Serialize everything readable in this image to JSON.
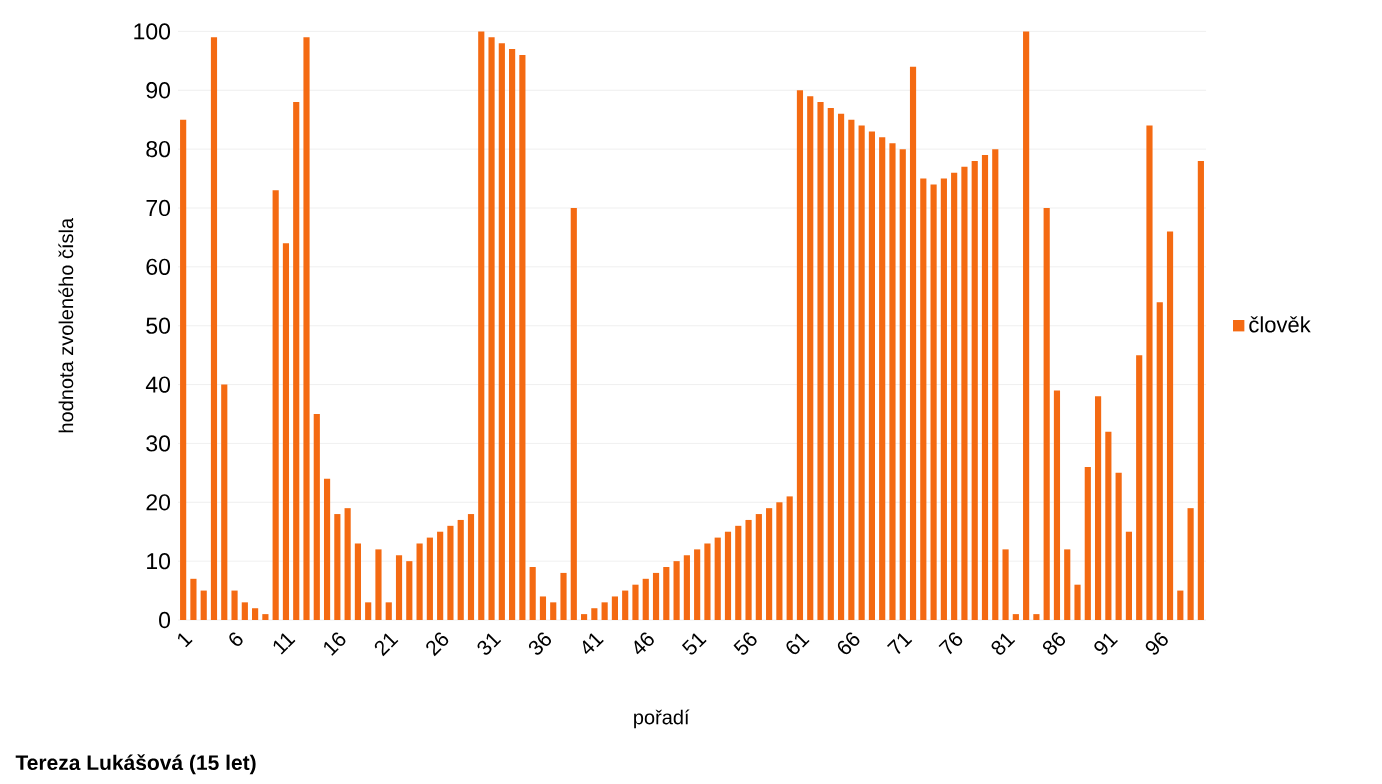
{
  "chart_data": {
    "type": "bar",
    "xlabel": "pořadí",
    "ylabel": "hodnota zvoleného čísla",
    "categories": [
      "1",
      null,
      null,
      null,
      null,
      "6",
      null,
      null,
      null,
      null,
      "11",
      null,
      null,
      null,
      null,
      "16",
      null,
      null,
      null,
      null,
      "21",
      null,
      null,
      null,
      null,
      "26",
      null,
      null,
      null,
      null,
      "31",
      null,
      null,
      null,
      null,
      "36",
      null,
      null,
      null,
      null,
      "41",
      null,
      null,
      null,
      null,
      "46",
      null,
      null,
      null,
      null,
      "51",
      null,
      null,
      null,
      null,
      "56",
      null,
      null,
      null,
      null,
      "61",
      null,
      null,
      null,
      null,
      "66",
      null,
      null,
      null,
      null,
      "71",
      null,
      null,
      null,
      null,
      "76",
      null,
      null,
      null,
      null,
      "81",
      null,
      null,
      null,
      null,
      "86",
      null,
      null,
      null,
      null,
      "91",
      null,
      null,
      null,
      null,
      "96",
      null,
      null,
      null,
      null
    ],
    "series": [
      {
        "name": "člověk",
        "color": "#f46a12",
        "values": [
          85,
          7,
          5,
          99,
          40,
          5,
          3,
          2,
          1,
          73,
          64,
          88,
          99,
          35,
          24,
          18,
          19,
          13,
          3,
          12,
          3,
          11,
          10,
          13,
          14,
          15,
          16,
          17,
          18,
          100,
          99,
          98,
          97,
          96,
          9,
          4,
          3,
          8,
          70,
          1,
          2,
          3,
          4,
          5,
          6,
          7,
          8,
          9,
          10,
          11,
          12,
          13,
          14,
          15,
          16,
          17,
          18,
          19,
          20,
          21,
          90,
          89,
          88,
          87,
          86,
          85,
          84,
          83,
          82,
          81,
          80,
          94,
          75,
          74,
          75,
          76,
          77,
          78,
          79,
          80,
          12,
          1,
          100,
          1,
          70,
          39,
          12,
          6,
          26,
          38,
          32,
          25,
          15,
          45,
          84,
          54,
          66,
          5,
          19,
          78
        ]
      }
    ],
    "ylim": [
      0,
      100
    ],
    "yticks": [
      0,
      10,
      20,
      30,
      40,
      50,
      60,
      70,
      80,
      90,
      100
    ],
    "grid": "y",
    "legend": "right",
    "annotations": [
      "Tereza Lukášová (15 let)"
    ]
  }
}
